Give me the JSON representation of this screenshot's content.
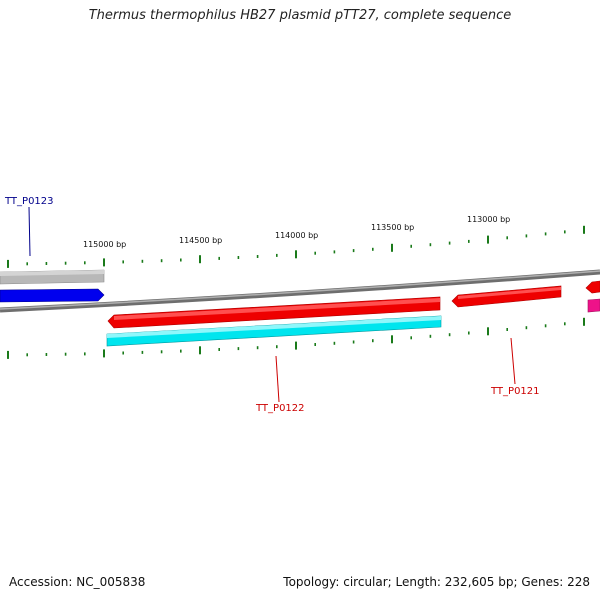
{
  "title": "Thermus thermophilus HB27 plasmid pTT27, complete sequence",
  "footer": {
    "accession": "Accession: NC_005838",
    "summary": "Topology: circular; Length: 232,605 bp; Genes: 228"
  },
  "ruler_labels": [
    "115000 bp",
    "114500 bp",
    "114000 bp",
    "113500 bp",
    "113000 bp"
  ],
  "genes": [
    {
      "id": "TT_P0123",
      "label": "TT_P0123",
      "color": "#00008b"
    },
    {
      "id": "TT_P0122",
      "label": "TT_P0122",
      "color": "#cc0000"
    },
    {
      "id": "TT_P0121",
      "label": "TT_P0121",
      "color": "#cc0000"
    }
  ],
  "colors": {
    "backbone": "#808080",
    "gray_feature": "#b8b8b8",
    "blue_feature": "#0000ee",
    "red_feature": "#ee0000",
    "cyan_feature": "#00e5ee",
    "magenta_feature": "#ee1289",
    "tick": "#1a7a1a"
  }
}
